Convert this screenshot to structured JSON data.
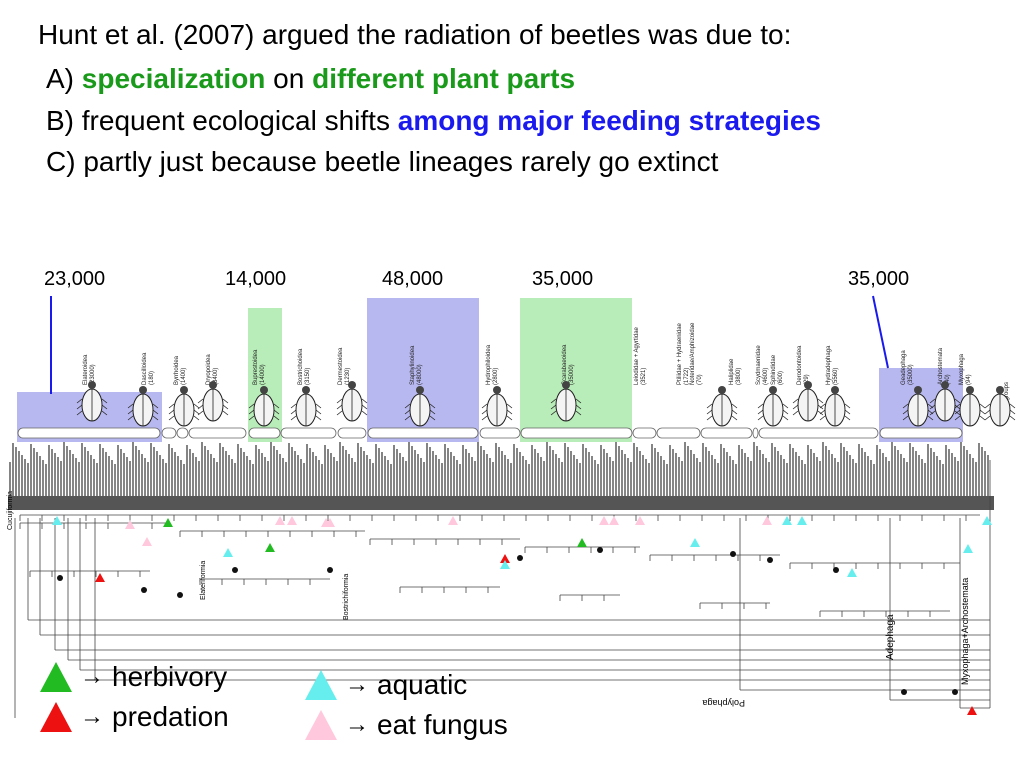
{
  "slide": {
    "heading": "Hunt et al. (2007) argued the radiation of beetles was due to:",
    "option_a": {
      "prefix": "A) ",
      "part1": "specialization",
      "mid": " on ",
      "part2": "different plant parts"
    },
    "option_b": {
      "prefix": "B) frequent ecological shifts ",
      "highlight": "among major feeding strategies"
    },
    "option_c": "C) partly just because beetle lineages rarely go extinct"
  },
  "species_counts": [
    "23,000",
    "14,000",
    "48,000",
    "35,000",
    "35,000"
  ],
  "clades": [
    {
      "name": "Elateroidea",
      "count": "(23000)"
    },
    {
      "name": "Dascilloidea",
      "count": "(180)"
    },
    {
      "name": "Byrrhoidea",
      "count": "(1400)"
    },
    {
      "name": "Dryopoidea",
      "count": "(3400)"
    },
    {
      "name": "Buprestoidea",
      "count": "(14000)"
    },
    {
      "name": "Bostrichoidea",
      "count": "(3150)"
    },
    {
      "name": "Dermestoidea",
      "count": "(1230)"
    },
    {
      "name": "Staphylinoidea",
      "count": "(48000)"
    },
    {
      "name": "Hydrophiloidea",
      "count": "(2800)"
    },
    {
      "name": "Scarabaeoidea",
      "count": "(35000)"
    },
    {
      "name": "Leiodidae + Agyrtidae",
      "count": "(3521)"
    },
    {
      "name": "Ptiliidae + Hydraenidae",
      "count": "(1722)"
    },
    {
      "name": "Noteridae/Amphizoidae",
      "count": "(70)"
    },
    {
      "name": "Haliplidae",
      "count": "(3800)"
    },
    {
      "name": "Scydmaenidae",
      "count": "(4600)"
    },
    {
      "name": "Sphindidae",
      "count": "(600)"
    },
    {
      "name": "Derodontoidea",
      "count": "(29)"
    },
    {
      "name": "Hydradephaga",
      "count": "(5560)"
    },
    {
      "name": "Geadephaga",
      "count": "(35000)"
    },
    {
      "name": "Archostemata",
      "count": "(40)"
    },
    {
      "name": "Myxophaga",
      "count": "(94)"
    },
    {
      "name": "Outgroups",
      "count": ""
    }
  ],
  "tree_labels": {
    "left": "Cucujiformia",
    "elateriformia": "Elateriformia",
    "bostrichiformia": "Bostrichiformia",
    "adephaga": "Adephaga",
    "myxo_archo": "Myxophaga+Archostemata",
    "polyphaga": "Polyphaga"
  },
  "legend": [
    {
      "label": "herbivory",
      "color": "#22bb22"
    },
    {
      "label": "predation",
      "color": "#ee1111"
    },
    {
      "label": "aquatic",
      "color": "#66eeee"
    },
    {
      "label": "eat fungus",
      "color": "#ffc8dd"
    }
  ],
  "arrow_glyph": "→",
  "highlight_colors": {
    "blue": "#b8b8f0",
    "green": "#b8ecb8"
  }
}
